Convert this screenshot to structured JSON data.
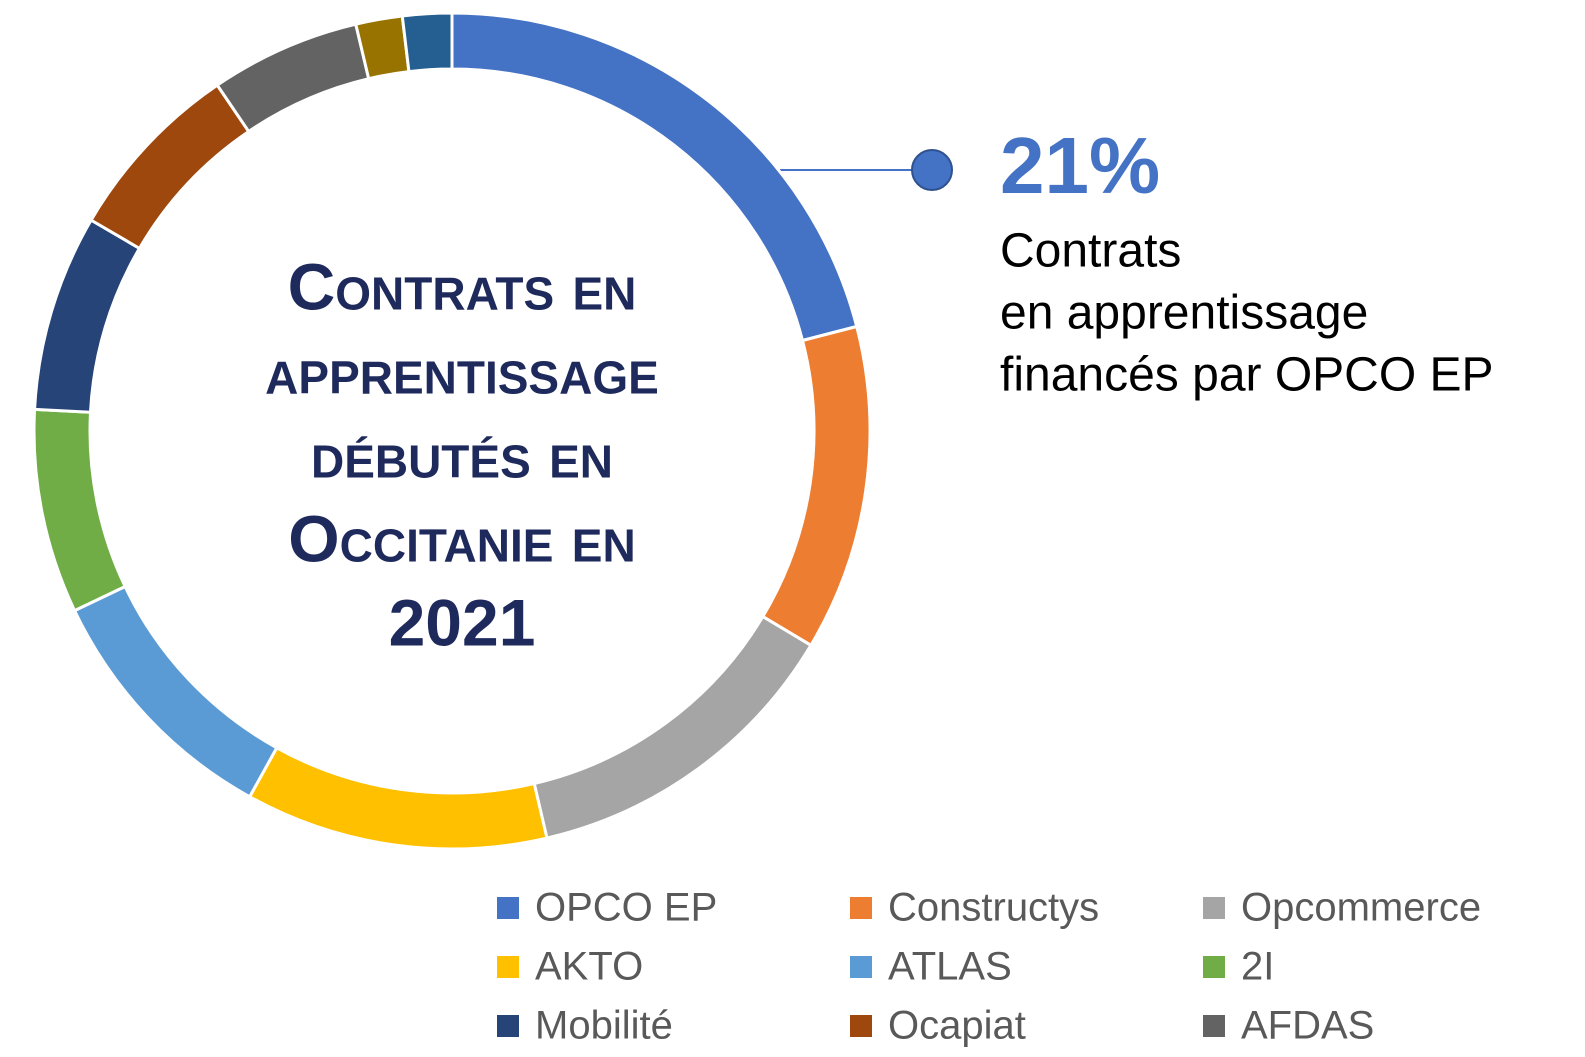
{
  "chart_data": {
    "type": "donut",
    "title": [
      "Contrats en",
      "apprentissage",
      "débutés en",
      "Occitanie en",
      "2021"
    ],
    "categories": [
      "OPCO EP",
      "Constructys",
      "Opcommerce",
      "AKTO",
      "ATLAS",
      "2I",
      "Mobilité",
      "Ocapiat",
      "AFDAS",
      null,
      null
    ],
    "values": [
      21,
      12.6,
      12.8,
      11.7,
      9.9,
      7.9,
      7.6,
      7.1,
      5.8,
      1.8,
      1.9
    ],
    "colors": [
      "#4472c4",
      "#ed7d31",
      "#a5a5a5",
      "#ffc000",
      "#5b9bd5",
      "#70ad47",
      "#264478",
      "#9e480e",
      "#636363",
      "#997300",
      "#255e91"
    ],
    "annotation": {
      "label": "21%",
      "lines": [
        "Contrats",
        "en apprentissage",
        "financés par OPCO EP"
      ]
    }
  }
}
